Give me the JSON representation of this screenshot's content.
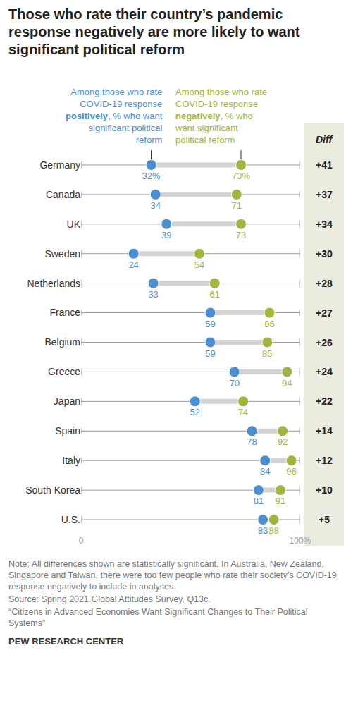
{
  "chart_data": {
    "type": "dumbbell",
    "title": "Those who rate their country’s pandemic response negatively are more likely to want significant political reform",
    "categories": [
      "Germany",
      "Canada",
      "UK",
      "Sweden",
      "Netherlands",
      "France",
      "Belgium",
      "Greece",
      "Japan",
      "Spain",
      "Italy",
      "South Korea",
      "U.S."
    ],
    "series": [
      {
        "name": [
          "Among those who rate",
          "COVID-19 response",
          "positively, % who want",
          "significant political",
          "reform"
        ],
        "emphasis": "positively",
        "color": "#4b8fd1",
        "values": [
          32,
          34,
          39,
          24,
          33,
          59,
          59,
          70,
          52,
          78,
          84,
          81,
          83
        ],
        "value_labels": [
          "32%",
          "34",
          "39",
          "24",
          "33",
          "59",
          "59",
          "70",
          "52",
          "78",
          "84",
          "81",
          "83"
        ]
      },
      {
        "name": [
          "Among those who rate",
          "COVID-19 response",
          "negatively, % who",
          "want significant",
          "political reform"
        ],
        "emphasis": "negatively",
        "color": "#a2b541",
        "values": [
          73,
          71,
          73,
          54,
          61,
          86,
          85,
          94,
          74,
          92,
          96,
          91,
          88
        ],
        "value_labels": [
          "73%",
          "71",
          "73",
          "54",
          "61",
          "86",
          "85",
          "94",
          "74",
          "92",
          "96",
          "91",
          "88"
        ]
      }
    ],
    "diff": {
      "title": "Diff",
      "values": [
        41,
        37,
        34,
        30,
        28,
        27,
        26,
        24,
        22,
        14,
        12,
        10,
        5
      ],
      "value_labels": [
        "+41",
        "+37",
        "+34",
        "+30",
        "+28",
        "+27",
        "+26",
        "+24",
        "+22",
        "+14",
        "+12",
        "+10",
        "+5"
      ]
    },
    "xlim": [
      0,
      100
    ],
    "xticks": [
      {
        "value": 0,
        "label": "0"
      },
      {
        "value": 100,
        "label": "100%"
      }
    ],
    "data_labels": true,
    "grid": false,
    "note": "Note: All differences shown are statistically significant. In Australia, New Zealand, Singapore and Taiwan, there were too few people who rate their society’s COVID-19 response negatively to include in analyses.",
    "source": "Source: Spring 2021 Global Attitudes Survey. Q13c.",
    "report": "“Citizens in Advanced Economies Want Significant Changes to Their Political Systems”",
    "footer": "PEW RESEARCH CENTER"
  }
}
